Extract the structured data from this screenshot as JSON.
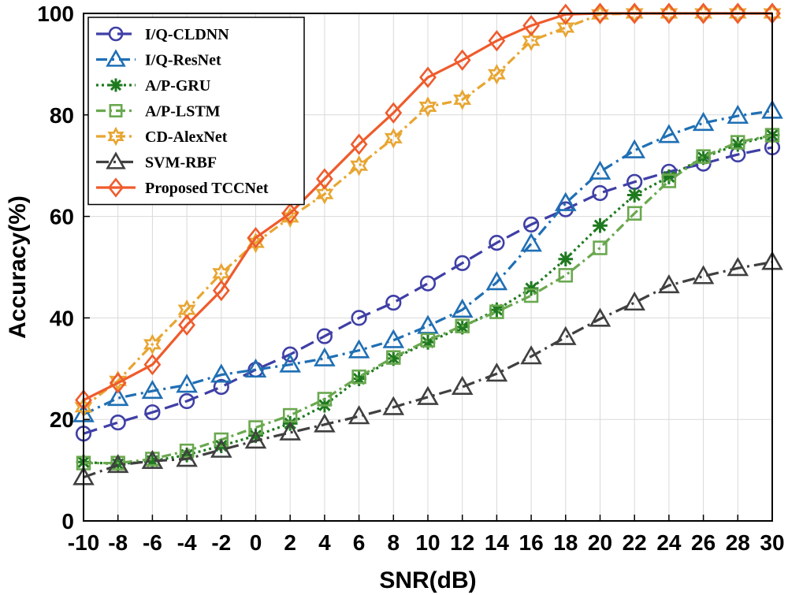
{
  "chart_data": {
    "type": "line",
    "title": "",
    "xlabel": "SNR(dB)",
    "ylabel": "Accuracy(%)",
    "xlim": [
      -10,
      30
    ],
    "ylim": [
      0,
      100
    ],
    "grid": true,
    "legend_position": "top-left",
    "x": [
      -10,
      -8,
      -6,
      -4,
      -2,
      0,
      2,
      4,
      6,
      8,
      10,
      12,
      14,
      16,
      18,
      20,
      22,
      24,
      26,
      28,
      30
    ],
    "xticks": [
      -10,
      -8,
      -6,
      -4,
      -2,
      0,
      2,
      4,
      6,
      8,
      10,
      12,
      14,
      16,
      18,
      20,
      22,
      24,
      26,
      28,
      30
    ],
    "yticks": [
      0,
      20,
      40,
      60,
      80,
      100
    ],
    "series": [
      {
        "name": "I/Q-CLDNN",
        "color": "#3f3fa6",
        "marker": "circle",
        "dash": "18,9",
        "values": [
          17.2,
          19.4,
          21.4,
          23.6,
          26.4,
          29.8,
          32.8,
          36.4,
          40.0,
          43.0,
          46.8,
          50.8,
          54.8,
          58.4,
          61.4,
          64.6,
          66.8,
          68.8,
          70.4,
          72.2,
          73.6
        ]
      },
      {
        "name": "I/Q-ResNet",
        "color": "#1f6fb4",
        "marker": "triangle",
        "dash": "14,6,3,6",
        "values": [
          21.0,
          24.2,
          25.6,
          26.8,
          28.8,
          29.8,
          30.8,
          32.0,
          33.6,
          35.6,
          38.4,
          41.6,
          47.0,
          54.6,
          62.6,
          68.8,
          73.0,
          76.0,
          78.4,
          79.8,
          80.8
        ]
      },
      {
        "name": "A/P-GRU",
        "color": "#1f7a1f",
        "marker": "asterisk",
        "dash": "3,4",
        "values": [
          11.6,
          11.2,
          11.8,
          13.0,
          14.8,
          16.8,
          19.2,
          22.8,
          28.0,
          32.0,
          35.2,
          38.2,
          41.6,
          45.8,
          51.6,
          58.2,
          64.2,
          67.8,
          71.6,
          74.2,
          76.0
        ]
      },
      {
        "name": "A/P-LSTM",
        "color": "#6aa84f",
        "marker": "square",
        "dash": "12,5,3,5",
        "values": [
          11.4,
          11.4,
          12.2,
          13.8,
          16.0,
          18.4,
          20.8,
          24.0,
          28.4,
          32.2,
          35.6,
          38.4,
          41.2,
          44.4,
          48.4,
          53.8,
          60.6,
          67.0,
          71.8,
          74.6,
          76.0
        ]
      },
      {
        "name": "CD-AlexNet",
        "color": "#e8a530",
        "marker": "hexagram",
        "dash": "12,5,3,5",
        "values": [
          22.4,
          27.6,
          34.8,
          41.6,
          48.8,
          54.8,
          59.8,
          64.4,
          70.0,
          75.4,
          81.6,
          83.0,
          88.0,
          94.6,
          97.2,
          99.8,
          100,
          100,
          100,
          100,
          100
        ]
      },
      {
        "name": "SVM-RBF",
        "color": "#404040",
        "marker": "triangle",
        "dash": "16,6,3,6",
        "values": [
          8.6,
          11.0,
          11.8,
          12.2,
          14.0,
          15.8,
          17.4,
          19.0,
          20.6,
          22.4,
          24.4,
          26.4,
          29.0,
          32.4,
          36.2,
          39.8,
          43.0,
          46.4,
          48.2,
          49.8,
          51.0
        ]
      },
      {
        "name": "Proposed TCCNet",
        "color": "#ef5b2c",
        "marker": "diamond",
        "dash": "",
        "values": [
          23.8,
          27.2,
          30.8,
          38.6,
          45.4,
          55.8,
          60.6,
          67.4,
          74.2,
          80.4,
          87.4,
          90.8,
          94.6,
          97.6,
          99.8,
          100,
          100,
          100,
          100,
          100,
          100
        ]
      }
    ]
  }
}
